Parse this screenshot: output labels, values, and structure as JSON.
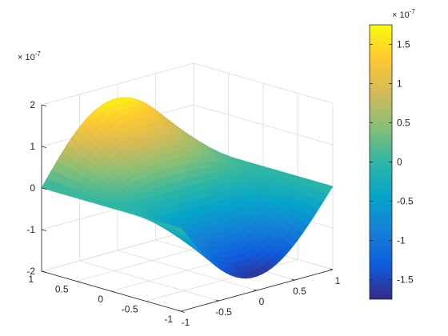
{
  "chart_data": {
    "type": "surface",
    "title": "",
    "xlabel": "",
    "ylabel": "",
    "zlabel": "",
    "x_ticks": [
      "-1",
      "-0.5",
      "0",
      "0.5",
      "1"
    ],
    "y_ticks": [
      "-1",
      "-0.5",
      "0",
      "0.5",
      "1"
    ],
    "z_ticks": [
      "-2",
      "-1",
      "0",
      "1",
      "2"
    ],
    "z_multiplier": "×10^{-7}",
    "z_multiplier_text": "× 10",
    "z_multiplier_exp": "-7",
    "xlim": [
      -1,
      1
    ],
    "ylim": [
      -1,
      1
    ],
    "zlim": [
      -2e-07,
      2e-07
    ],
    "surface": {
      "z_max": 1.75e-07,
      "z_min": -1.75e-07,
      "description_points": [
        {
          "x": 0.0,
          "y": 1.0,
          "z": 1.75e-07
        },
        {
          "x": 1.0,
          "y": -1.0,
          "z": -1.75e-07
        },
        {
          "x": -1.0,
          "y": 1.0,
          "z": 0.0
        },
        {
          "x": 1.0,
          "y": 1.0,
          "z": 0.0
        },
        {
          "x": -1.0,
          "y": -1.0,
          "z": 0.0
        }
      ]
    },
    "colorbar": {
      "colormap": "parula",
      "clim": [
        -1.75e-07,
        1.75e-07
      ],
      "ticks": [
        "-1.5",
        "-1",
        "-0.5",
        "0",
        "0.5",
        "1",
        "1.5"
      ],
      "tick_values": [
        -1.5,
        -1,
        -0.5,
        0,
        0.5,
        1,
        1.5
      ],
      "multiplier_text": "× 10",
      "multiplier_exp": "-7",
      "colors": [
        "#352a87",
        "#0f5cdd",
        "#1481d6",
        "#06a4ca",
        "#2eb7a4",
        "#87bf77",
        "#d1bb59",
        "#fec832",
        "#f9fb0e"
      ]
    },
    "grid": true
  }
}
